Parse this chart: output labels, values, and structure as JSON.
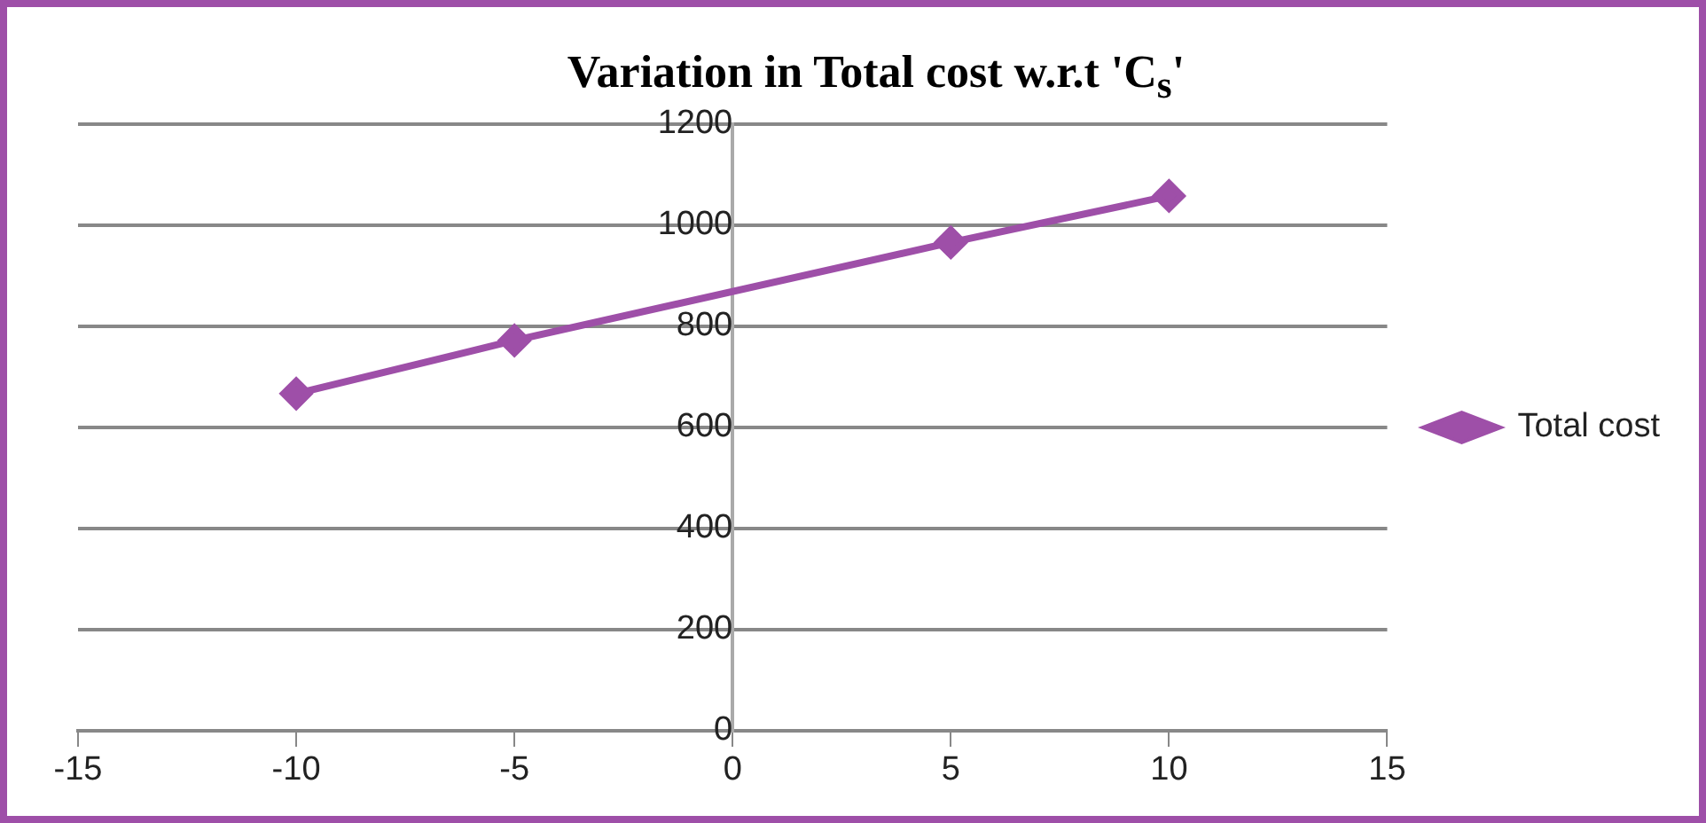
{
  "chart_data": {
    "type": "line",
    "title": "Variation in Total cost w.r.t 'C$_{s}$'",
    "x": [
      -10,
      -5,
      5,
      10
    ],
    "series": [
      {
        "name": "Total cost",
        "color": "#9e4fa8",
        "values": [
          667,
          772,
          966,
          1058
        ]
      }
    ],
    "xlim": [
      -15,
      15
    ],
    "xticks": [
      -15,
      -10,
      -5,
      0,
      5,
      10,
      15
    ],
    "ylim": [
      0,
      1200
    ],
    "yticks": [
      0,
      200,
      400,
      600,
      800,
      1000,
      1200
    ],
    "grid": "y",
    "legend": "right",
    "marker": "diamond",
    "line_style": "solid"
  }
}
